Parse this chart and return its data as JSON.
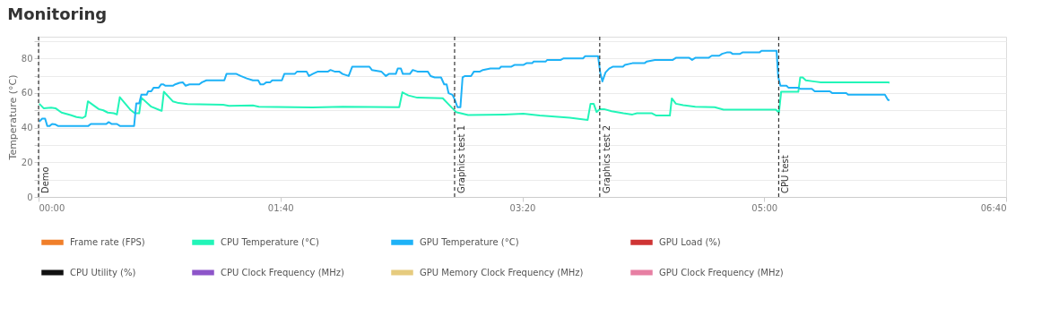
{
  "chart_data": {
    "type": "line",
    "title": "Monitoring",
    "ylabel": "Temperature (°C)",
    "xlim": [
      0,
      400
    ],
    "ylim": [
      0,
      92.5
    ],
    "xticks": [
      {
        "value": 0,
        "label": "00:00"
      },
      {
        "value": 100,
        "label": "01:40"
      },
      {
        "value": 200,
        "label": "03:20"
      },
      {
        "value": 300,
        "label": "05:00"
      },
      {
        "value": 400,
        "label": "06:40"
      }
    ],
    "yticks": [
      0,
      {
        "value": 10,
        "label": null
      },
      20,
      {
        "value": 30,
        "label": null
      },
      40,
      {
        "value": 50,
        "label": null
      },
      60,
      {
        "value": 70,
        "label": null
      },
      80,
      {
        "value": 90,
        "label": null
      }
    ],
    "grid": "y",
    "legend": "bottom",
    "line_style": "solid",
    "marker": "none",
    "series": [
      {
        "name": "Frame rate (FPS)",
        "color": "#f07f2a"
      },
      {
        "name": "CPU Temperature (°C)",
        "color": "#22f5b8",
        "x": [
          0.3,
          2.1,
          5.2,
          7,
          9.5,
          13.2,
          15.7,
          18.2,
          19.4,
          20.4,
          24.9,
          26.8,
          28.6,
          31.1,
          32.4,
          33.6,
          37.9,
          39.8,
          41.6,
          42.5,
          46.6,
          50.3,
          50.9,
          51.8,
          55.5,
          57.9,
          61.6,
          76.3,
          78.7,
          88.6,
          91.1,
          113.3,
          125.7,
          149.1,
          150.4,
          152.9,
          156.6,
          167.1,
          169,
          172.6,
          177.6,
          192.4,
          200.4,
          207.2,
          219.6,
          227,
          228.2,
          229.5,
          230.7,
          232,
          233.8,
          236.9,
          241.8,
          245.5,
          247.4,
          253.6,
          255.4,
          261,
          261.8,
          263.5,
          266.5,
          271.5,
          279.5,
          283.2,
          304.8,
          306.1,
          307,
          314.1,
          314.9,
          315.9,
          317.2,
          320.9,
          323.4,
          351.2,
          351.8
        ],
        "values": [
          53.8,
          51.2,
          51.6,
          51.2,
          48.7,
          47.3,
          46.1,
          45.6,
          46.6,
          55.2,
          50.7,
          50,
          48.7,
          48.3,
          47.6,
          57.6,
          50.4,
          48.3,
          48.3,
          57.3,
          52.1,
          50,
          49.7,
          60.7,
          55.2,
          54.2,
          53.6,
          53.2,
          52.6,
          52.8,
          52.1,
          51.7,
          52.1,
          51.8,
          60.4,
          58.6,
          57.3,
          57,
          54.2,
          49,
          47.3,
          47.6,
          48,
          47,
          45.7,
          44.4,
          53.8,
          53.8,
          49,
          50.7,
          50.7,
          49.5,
          48.3,
          47.6,
          48.3,
          48.3,
          47,
          47,
          56.9,
          53.8,
          53,
          52.1,
          51.8,
          50.4,
          50.4,
          48.7,
          60.7,
          60.7,
          69,
          69,
          67.3,
          66.6,
          66.2,
          66.2,
          65.9
        ]
      },
      {
        "name": "GPU Temperature (°C)",
        "color": "#1eb2f7",
        "x": [
          0.3,
          1.5,
          2.7,
          3.6,
          4.6,
          5.6,
          7,
          8,
          20.6,
          21.6,
          28,
          29,
          30.3,
          32.4,
          33.6,
          39.5,
          40.4,
          41.6,
          42.5,
          44.7,
          45.3,
          46.6,
          47.6,
          49.7,
          50.7,
          51.5,
          52.5,
          55.5,
          56.5,
          58.3,
          59.6,
          60.8,
          62.4,
          66.4,
          67.6,
          69.4,
          76.8,
          77.7,
          81.8,
          83.6,
          86.1,
          88.6,
          90.8,
          91.7,
          93,
          94.2,
          95.8,
          96.6,
          100.6,
          101.6,
          105.9,
          106.9,
          110.8,
          111.8,
          113.3,
          115.5,
          119.7,
          120.7,
          122.6,
          124.4,
          125.7,
          128.2,
          129.7,
          136.8,
          137.8,
          141.7,
          143.6,
          144.8,
          147.7,
          148.5,
          149.8,
          150.6,
          153.5,
          154.7,
          156.6,
          160.9,
          162.1,
          163.8,
          166.4,
          167.7,
          168.7,
          169.5,
          171.1,
          172,
          173.2,
          174.4,
          175.3,
          176.3,
          178.8,
          180,
          182.5,
          183.7,
          186.8,
          190.5,
          191.2,
          195.5,
          196.7,
          200.4,
          201.7,
          204.1,
          204.7,
          209.7,
          210.3,
          215.9,
          217.1,
          225.1,
          226,
          231.3,
          232.2,
          233.1,
          234.4,
          235.9,
          237.5,
          241.6,
          242.4,
          245.5,
          250.5,
          251.5,
          254.8,
          262.2,
          263.5,
          269,
          270.2,
          271.5,
          277,
          278.3,
          281.4,
          282.6,
          284.5,
          286.1,
          286.9,
          290,
          291,
          298,
          298.9,
          305.1,
          305.8,
          306.7,
          309.2,
          310,
          314.1,
          314.9,
          319.7,
          320.9,
          327.1,
          328.1,
          333.9,
          334.7,
          349.9,
          351.2,
          351.8
        ],
        "values": [
          43.5,
          45.2,
          45.2,
          41,
          41,
          42.1,
          41.8,
          41,
          41,
          42.1,
          42.1,
          43.2,
          42.1,
          42.1,
          41,
          41,
          54,
          54,
          59,
          59,
          61,
          61,
          63.1,
          63.1,
          65,
          65,
          64.2,
          64.2,
          65,
          65.9,
          66.2,
          64.2,
          65,
          65,
          66.2,
          67.3,
          67.3,
          71,
          71,
          69.8,
          68.4,
          67.3,
          67.3,
          65,
          65,
          66.2,
          66.2,
          67.3,
          67.3,
          71,
          71,
          72.4,
          72.4,
          69.8,
          71,
          72.4,
          72.4,
          73.3,
          72.3,
          72.3,
          71,
          69.8,
          75.2,
          75.2,
          73.3,
          72.4,
          69.8,
          71,
          71,
          74.1,
          74.1,
          71,
          71,
          73.3,
          72.4,
          72.4,
          69.8,
          69,
          69,
          65,
          65,
          59.9,
          59,
          56.4,
          51.8,
          51.8,
          69,
          69.8,
          69.8,
          72.4,
          72.4,
          73.3,
          74.1,
          74.1,
          75.2,
          75.2,
          76.2,
          76.2,
          77.2,
          77.2,
          78.2,
          78.2,
          79.1,
          79.1,
          80,
          80,
          81.3,
          81.3,
          71.9,
          66.7,
          71.9,
          74.1,
          75.2,
          75.2,
          76.2,
          77.2,
          77.2,
          78.2,
          79.1,
          79.1,
          80.3,
          80.3,
          79.1,
          80.3,
          80.3,
          81.5,
          81.5,
          82.6,
          83.4,
          83.4,
          82.6,
          82.6,
          83.4,
          83.4,
          84.4,
          84.4,
          69.3,
          64.2,
          64.2,
          63.1,
          63.1,
          62.4,
          62.4,
          61,
          61,
          60,
          60,
          59,
          59,
          55.9,
          55.9
        ]
      },
      {
        "name": "GPU Load (%)",
        "color": "#cf3434"
      },
      {
        "name": "CPU Utility (%)",
        "color": "#111111"
      },
      {
        "name": "CPU Clock Frequency (MHz)",
        "color": "#8d55c9"
      },
      {
        "name": "GPU Memory Clock Frequency (MHz)",
        "color": "#e6cb7e"
      },
      {
        "name": "GPU Clock Frequency (MHz)",
        "color": "#e77fa3"
      }
    ],
    "ref_lines": [
      {
        "axis": "x",
        "value": 0,
        "label": "Demo",
        "color": "#333333",
        "line_style": "dashed"
      },
      {
        "axis": "x",
        "value": 172,
        "label": "Graphics test 1",
        "color": "#333333",
        "line_style": "dashed"
      },
      {
        "axis": "x",
        "value": 232,
        "label": "Graphics test 2",
        "color": "#333333",
        "line_style": "dashed"
      },
      {
        "axis": "x",
        "value": 306,
        "label": "CPU test",
        "color": "#333333",
        "line_style": "dashed"
      }
    ]
  }
}
